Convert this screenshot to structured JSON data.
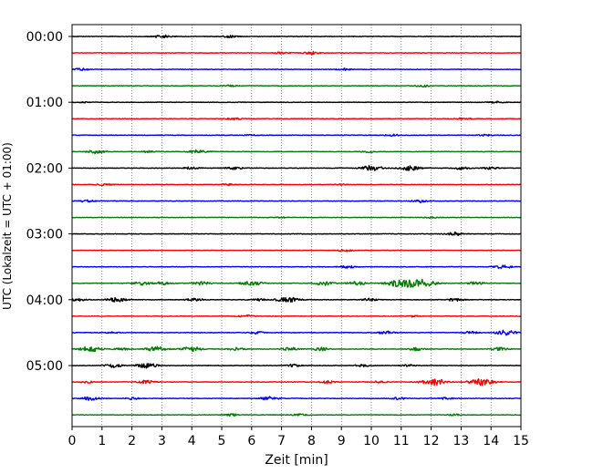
{
  "chart_data": {
    "type": "line",
    "title": "",
    "xlabel": "Zeit  [min]",
    "ylabel": "UTC (Lokalzeit = UTC + 01:00)",
    "xlim": [
      0,
      15
    ],
    "x_ticks": [
      "0",
      "1",
      "2",
      "3",
      "4",
      "5",
      "6",
      "7",
      "8",
      "9",
      "10",
      "11",
      "12",
      "13",
      "14",
      "15"
    ],
    "y_tick_labels": [
      "00:00",
      "01:00",
      "02:00",
      "03:00",
      "04:00",
      "05:00"
    ],
    "trace_interval_minutes": 15,
    "trace_count": 24,
    "trace_colors": [
      "#000000",
      "#ff0000",
      "#0000ff",
      "#008000"
    ],
    "grid": "vertical dotted at each minute",
    "series": [
      {
        "start": "00:00",
        "color": "#000000",
        "events": [
          [
            3.0,
            0.55
          ],
          [
            5.3,
            0.4
          ]
        ]
      },
      {
        "start": "00:15",
        "color": "#ff0000",
        "events": [
          [
            7.0,
            0.3
          ],
          [
            8.0,
            0.5
          ]
        ]
      },
      {
        "start": "00:30",
        "color": "#0000ff",
        "events": [
          [
            0.3,
            0.35
          ],
          [
            9.1,
            0.35
          ]
        ]
      },
      {
        "start": "00:45",
        "color": "#008000",
        "events": [
          [
            11.7,
            0.35
          ],
          [
            5.3,
            0.25
          ]
        ]
      },
      {
        "start": "01:00",
        "color": "#000000",
        "events": [
          [
            14.2,
            0.3
          ],
          [
            0.3,
            0.2
          ]
        ]
      },
      {
        "start": "01:15",
        "color": "#ff0000",
        "events": [
          [
            5.4,
            0.4
          ],
          [
            13.1,
            0.3
          ]
        ]
      },
      {
        "start": "01:30",
        "color": "#0000ff",
        "events": [
          [
            10.7,
            0.35
          ],
          [
            13.8,
            0.3
          ],
          [
            6.0,
            0.2
          ]
        ]
      },
      {
        "start": "01:45",
        "color": "#008000",
        "events": [
          [
            0.8,
            0.6
          ],
          [
            4.2,
            0.6
          ],
          [
            2.5,
            0.3
          ],
          [
            9.9,
            0.3
          ]
        ]
      },
      {
        "start": "02:00",
        "color": "#000000",
        "events": [
          [
            10.0,
            0.85
          ],
          [
            11.3,
            0.8
          ],
          [
            5.4,
            0.5
          ],
          [
            4.0,
            0.4
          ],
          [
            13.0,
            0.45
          ],
          [
            14.0,
            0.4
          ]
        ]
      },
      {
        "start": "02:15",
        "color": "#ff0000",
        "events": [
          [
            1.1,
            0.35
          ],
          [
            5.2,
            0.25
          ],
          [
            9.0,
            0.2
          ]
        ]
      },
      {
        "start": "02:30",
        "color": "#0000ff",
        "events": [
          [
            0.5,
            0.4
          ],
          [
            11.6,
            0.45
          ]
        ]
      },
      {
        "start": "02:45",
        "color": "#008000",
        "events": [
          [
            7.0,
            0.2
          ],
          [
            12.0,
            0.2
          ]
        ]
      },
      {
        "start": "03:00",
        "color": "#000000",
        "events": [
          [
            12.8,
            0.55
          ]
        ]
      },
      {
        "start": "03:15",
        "color": "#ff0000",
        "events": [
          [
            9.1,
            0.4
          ]
        ]
      },
      {
        "start": "03:30",
        "color": "#0000ff",
        "events": [
          [
            9.2,
            0.45
          ],
          [
            14.4,
            0.6
          ]
        ]
      },
      {
        "start": "03:45",
        "color": "#008000",
        "events": [
          [
            11.1,
            1.6
          ],
          [
            11.8,
            1.0
          ],
          [
            6.0,
            0.8
          ],
          [
            8.4,
            0.7
          ],
          [
            2.3,
            0.6
          ],
          [
            3.0,
            0.5
          ],
          [
            4.3,
            0.6
          ],
          [
            9.5,
            0.6
          ],
          [
            13.5,
            0.5
          ]
        ]
      },
      {
        "start": "04:00",
        "color": "#000000",
        "events": [
          [
            1.5,
            0.7
          ],
          [
            7.2,
            0.9
          ],
          [
            4.1,
            0.5
          ],
          [
            9.9,
            0.45
          ],
          [
            12.8,
            0.5
          ],
          [
            0.2,
            0.4
          ],
          [
            6.2,
            0.4
          ]
        ]
      },
      {
        "start": "04:15",
        "color": "#ff0000",
        "events": [
          [
            5.8,
            0.35
          ],
          [
            11.4,
            0.25
          ]
        ]
      },
      {
        "start": "04:30",
        "color": "#0000ff",
        "events": [
          [
            14.5,
            0.8
          ],
          [
            10.5,
            0.45
          ],
          [
            13.3,
            0.4
          ],
          [
            6.2,
            0.4
          ],
          [
            1.3,
            0.3
          ]
        ]
      },
      {
        "start": "04:45",
        "color": "#008000",
        "events": [
          [
            0.6,
            0.9
          ],
          [
            2.8,
            0.8
          ],
          [
            4.0,
            0.8
          ],
          [
            5.5,
            0.5
          ],
          [
            7.3,
            0.5
          ],
          [
            8.3,
            0.5
          ],
          [
            11.5,
            0.5
          ],
          [
            14.3,
            0.5
          ],
          [
            1.7,
            0.4
          ]
        ]
      },
      {
        "start": "05:00",
        "color": "#000000",
        "events": [
          [
            2.5,
            0.8
          ],
          [
            1.4,
            0.6
          ],
          [
            7.4,
            0.4
          ],
          [
            9.7,
            0.4
          ],
          [
            11.3,
            0.35
          ]
        ]
      },
      {
        "start": "05:15",
        "color": "#ff0000",
        "events": [
          [
            12.1,
            1.1
          ],
          [
            13.7,
            1.2
          ],
          [
            2.5,
            0.55
          ],
          [
            8.5,
            0.45
          ],
          [
            0.5,
            0.35
          ],
          [
            10.3,
            0.35
          ]
        ]
      },
      {
        "start": "05:30",
        "color": "#0000ff",
        "events": [
          [
            0.6,
            0.6
          ],
          [
            6.6,
            0.6
          ],
          [
            2.0,
            0.35
          ],
          [
            10.9,
            0.35
          ],
          [
            12.5,
            0.3
          ]
        ]
      },
      {
        "start": "05:45",
        "color": "#008000",
        "events": [
          [
            5.3,
            0.4
          ],
          [
            7.6,
            0.3
          ],
          [
            12.8,
            0.25
          ]
        ]
      }
    ]
  }
}
